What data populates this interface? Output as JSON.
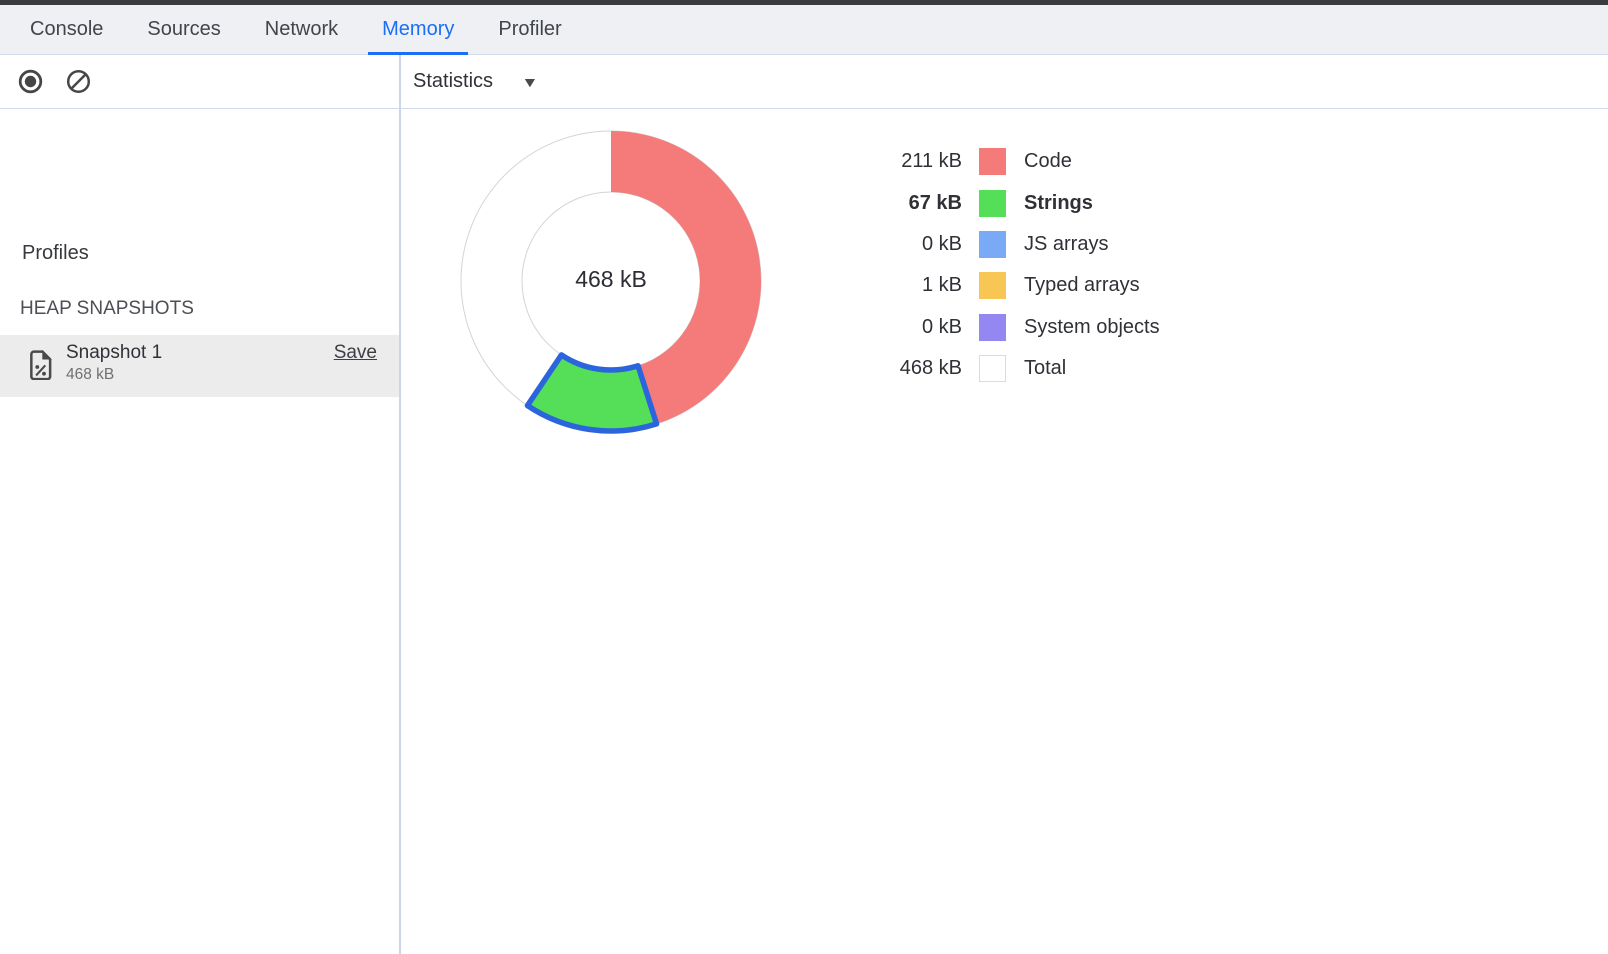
{
  "tabs": {
    "items": [
      {
        "label": "Console",
        "active": false
      },
      {
        "label": "Sources",
        "active": false
      },
      {
        "label": "Network",
        "active": false
      },
      {
        "label": "Memory",
        "active": true
      },
      {
        "label": "Profiler",
        "active": false
      }
    ],
    "active_color": "#1a6ff5"
  },
  "toolbar": {
    "record_icon": "record-heap-snapshot",
    "clear_icon": "clear-all-profiles",
    "view_select": {
      "selected": "Statistics",
      "caret": "▼"
    }
  },
  "sidebar": {
    "profiles_heading": "Profiles",
    "section_title": "HEAP SNAPSHOTS",
    "snapshot": {
      "title": "Snapshot 1",
      "size": "468 kB",
      "save_label": "Save",
      "selected": true
    }
  },
  "chart_data": {
    "type": "pie",
    "title": "Heap snapshot statistics donut",
    "center_label": "468 kB",
    "unit": "kB",
    "total_kb": 468,
    "legend_position": "right",
    "outline_color": "#d4d4d4",
    "highlight_stroke": "#2b65de",
    "series": [
      {
        "label": "Code",
        "value_kb": 211,
        "display": "211 kB",
        "color": "#f57a7a",
        "highlighted": false,
        "swatch_border": false
      },
      {
        "label": "Strings",
        "value_kb": 67,
        "display": "67 kB",
        "color": "#55de58",
        "highlighted": true,
        "swatch_border": false
      },
      {
        "label": "JS arrays",
        "value_kb": 0,
        "display": "0 kB",
        "color": "#7aa9f5",
        "highlighted": false,
        "swatch_border": false
      },
      {
        "label": "Typed arrays",
        "value_kb": 1,
        "display": "1 kB",
        "color": "#f8c655",
        "highlighted": false,
        "swatch_border": false
      },
      {
        "label": "System objects",
        "value_kb": 0,
        "display": "0 kB",
        "color": "#9587f2",
        "highlighted": false,
        "swatch_border": false
      },
      {
        "label": "Total",
        "value_kb": 468,
        "display": "468 kB",
        "color": "#ffffff",
        "highlighted": false,
        "swatch_border": true
      }
    ]
  }
}
